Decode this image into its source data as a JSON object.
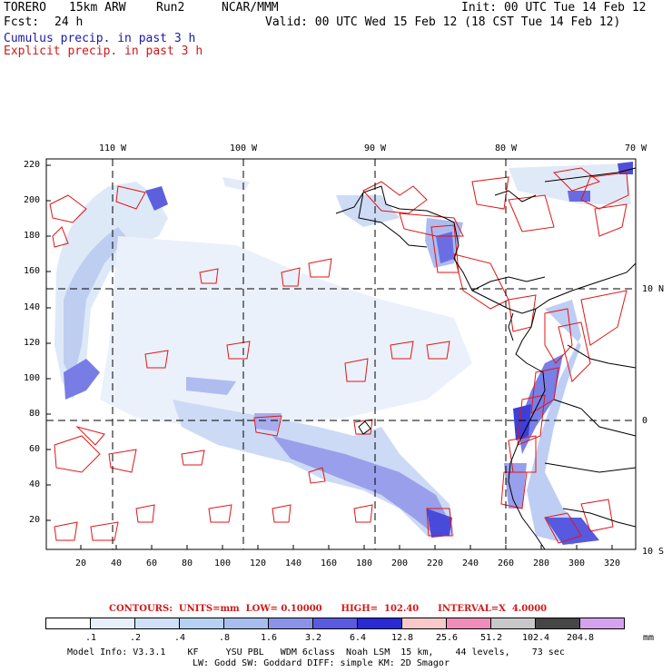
{
  "header": {
    "model": "TORERO",
    "resolution": "15km ARW",
    "run": "Run2",
    "org": "NCAR/MMM",
    "init": "Init: 00 UTC Tue 14 Feb 12",
    "fcst_label": "Fcst:",
    "fcst_value": "24 h",
    "valid": "Valid: 00 UTC Wed 15 Feb 12 (18 CST Tue 14 Feb 12)",
    "line_cumulus": "Cumulus precip. in past 3 h",
    "line_explicit": "Explicit precip. in past 3 h"
  },
  "axes": {
    "y_ticks": [
      "220",
      "200",
      "180",
      "160",
      "140",
      "120",
      "100",
      "80",
      "60",
      "40",
      "20"
    ],
    "x_ticks": [
      "20",
      "40",
      "60",
      "80",
      "100",
      "120",
      "140",
      "160",
      "180",
      "200",
      "220",
      "240",
      "260",
      "280",
      "300",
      "320"
    ],
    "lon_labels": [
      "110 W",
      "100 W",
      "90 W",
      "80 W",
      "70 W"
    ],
    "lat_labels": [
      "10 N",
      "0",
      "10 S"
    ]
  },
  "contours_info": "CONTOURS:  UNITS=mm  LOW= 0.10000      HIGH=  102.40      INTERVAL=X  4.0000",
  "colorbar": {
    "labels": [
      ".1",
      ".2",
      ".4",
      ".8",
      "1.6",
      "3.2",
      "6.4",
      "12.8",
      "25.6",
      "51.2",
      "102.4",
      "204.8"
    ],
    "units": "mm",
    "colors": [
      "#ffffff",
      "#e6f0fb",
      "#cfe1f6",
      "#b7d1f2",
      "#a7bdee",
      "#8b93e8",
      "#5a5ae0",
      "#2a2ad4",
      "#f7c9c9",
      "#f08cb8",
      "#c8c8c8",
      "#464646",
      "#d6a2ee"
    ]
  },
  "footer": {
    "line1": "Model Info: V3.3.1    KF     YSU PBL   WDM 6class  Noah LSM  15 km,    44 levels,    73 sec",
    "line2": "LW: Godd SW: Goddard DIFF: simple KM: 2D Smagor"
  }
}
